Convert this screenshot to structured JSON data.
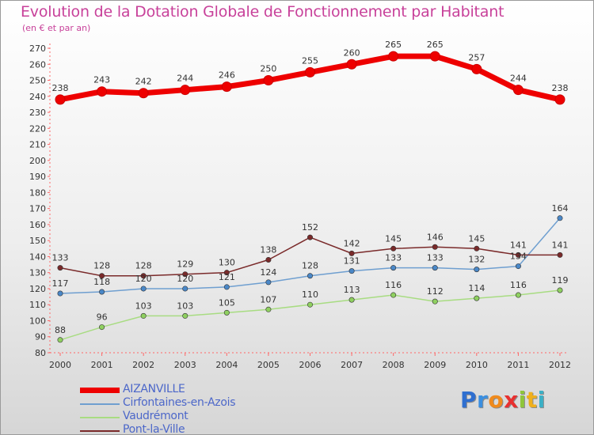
{
  "title": "Evolution de la Dotation Globale de Fonctionnement par Habitant",
  "subtitle": "(en € et par an)",
  "logo": {
    "text": "Proxiti",
    "letters": [
      "P",
      "r",
      "o",
      "x",
      "i",
      "t",
      "i"
    ],
    "colors": [
      "#2f6fd0",
      "#3b8fe0",
      "#f08a1c",
      "#e83030",
      "#8fc63b",
      "#f0b01c",
      "#3bb0c6"
    ]
  },
  "chart_data": {
    "type": "line",
    "title": "Evolution de la Dotation Globale de Fonctionnement par Habitant",
    "subtitle": "(en € et par an)",
    "xlabel": "",
    "ylabel": "",
    "x": [
      "2000",
      "2001",
      "2002",
      "2003",
      "2004",
      "2005",
      "2006",
      "2007",
      "2008",
      "2009",
      "2010",
      "2011",
      "2012"
    ],
    "ylim": [
      80,
      270
    ],
    "yticks": [
      80,
      90,
      100,
      110,
      120,
      130,
      140,
      150,
      160,
      170,
      180,
      190,
      200,
      210,
      220,
      230,
      240,
      250,
      260,
      270
    ],
    "grid": false,
    "legend_position": "bottom-left",
    "series": [
      {
        "name": "AIZANVILLE",
        "values": [
          238,
          243,
          242,
          244,
          246,
          250,
          255,
          260,
          265,
          265,
          257,
          244,
          238
        ],
        "labels": [
          "238",
          "243",
          "242",
          "244",
          "246",
          "250",
          "255",
          "260",
          "265",
          "265",
          "257",
          "244",
          "238"
        ],
        "color": "#ee0000",
        "marker": "#ee0000",
        "emphasis": "thick"
      },
      {
        "name": "Cirfontaines-en-Azois",
        "values": [
          117,
          118,
          120,
          120,
          121,
          124,
          128,
          131,
          133,
          133,
          132,
          134,
          164
        ],
        "labels": [
          "117",
          "118",
          "120",
          "120",
          "121",
          "124",
          "128",
          "131",
          "133",
          "133",
          "132",
          "134",
          "164"
        ],
        "color": "#6f9fd0",
        "marker": "#4a88c8",
        "emphasis": "thin"
      },
      {
        "name": "Vaudrémont",
        "values": [
          88,
          96,
          103,
          103,
          105,
          107,
          110,
          113,
          116,
          112,
          114,
          116,
          119
        ],
        "labels": [
          "88",
          "96",
          "103",
          "103",
          "105",
          "107",
          "110",
          "113",
          "116",
          "112",
          "114",
          "116",
          "119"
        ],
        "color": "#a8dc82",
        "marker": "#8fd060",
        "emphasis": "thin"
      },
      {
        "name": "Pont-la-Ville",
        "values": [
          133,
          128,
          128,
          129,
          130,
          138,
          152,
          142,
          145,
          146,
          145,
          141,
          141
        ],
        "labels": [
          "133",
          "128",
          "128",
          "129",
          "130",
          "138",
          "152",
          "142",
          "145",
          "146",
          "145",
          "141",
          "141"
        ],
        "color": "#7a2a2a",
        "marker": "#7a2a2a",
        "emphasis": "thin"
      }
    ]
  }
}
